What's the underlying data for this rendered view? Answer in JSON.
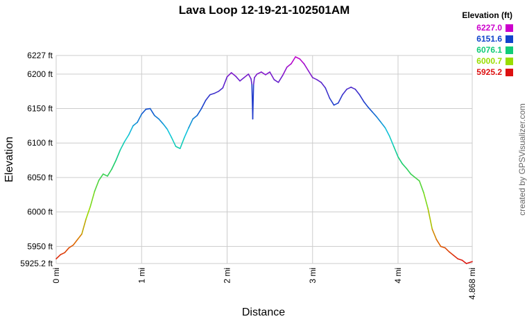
{
  "chart_data": {
    "type": "line",
    "title": "Lava Loop 12-19-21-102501AM",
    "xlabel": "Distance",
    "ylabel": "Elevation",
    "credit": "created by GPSVisualizer.com",
    "x_unit": "mi",
    "y_unit": "ft",
    "xlim": [
      0,
      4.868
    ],
    "ylim": [
      5925.2,
      6227.0
    ],
    "y_ticks": [
      {
        "value": 5925.2,
        "label": "5925.2 ft"
      },
      {
        "value": 5950,
        "label": "5950 ft"
      },
      {
        "value": 6000,
        "label": "6000 ft"
      },
      {
        "value": 6050,
        "label": "6050 ft"
      },
      {
        "value": 6100,
        "label": "6100 ft"
      },
      {
        "value": 6150,
        "label": "6150 ft"
      },
      {
        "value": 6200,
        "label": "6200 ft"
      },
      {
        "value": 6227,
        "label": "6227 ft"
      }
    ],
    "x_ticks": [
      {
        "value": 0,
        "label": "0 mi"
      },
      {
        "value": 1,
        "label": "1 mi"
      },
      {
        "value": 2,
        "label": "2 mi"
      },
      {
        "value": 3,
        "label": "3 mi"
      },
      {
        "value": 4,
        "label": "4 mi"
      },
      {
        "value": 4.868,
        "label": "4.868 mi"
      }
    ],
    "legend": {
      "title": "Elevation (ft)",
      "placement": "top-right",
      "entries": [
        {
          "label": "6227.0",
          "color": "#cc00cc"
        },
        {
          "label": "6151.6",
          "color": "#1144cc"
        },
        {
          "label": "6076.1",
          "color": "#11cc77"
        },
        {
          "label": "6000.7",
          "color": "#99dd00"
        },
        {
          "label": "5925.2",
          "color": "#dd1111"
        }
      ]
    },
    "grid": true,
    "color_by": "elevation",
    "series": [
      {
        "x": [
          0.0,
          0.05,
          0.1,
          0.15,
          0.2,
          0.25,
          0.3,
          0.35,
          0.4,
          0.45,
          0.5,
          0.55,
          0.6,
          0.65,
          0.7,
          0.75,
          0.8,
          0.85,
          0.9,
          0.95,
          1.0,
          1.05,
          1.1,
          1.15,
          1.2,
          1.25,
          1.3,
          1.35,
          1.4,
          1.45,
          1.5,
          1.55,
          1.6,
          1.65,
          1.7,
          1.75,
          1.8,
          1.85,
          1.9,
          1.95,
          2.0,
          2.05,
          2.1,
          2.15,
          2.2,
          2.25,
          2.28,
          2.29,
          2.3,
          2.31,
          2.32,
          2.35,
          2.4,
          2.45,
          2.5,
          2.55,
          2.6,
          2.65,
          2.7,
          2.75,
          2.8,
          2.85,
          2.9,
          2.95,
          3.0,
          3.05,
          3.1,
          3.15,
          3.2,
          3.25,
          3.3,
          3.35,
          3.4,
          3.45,
          3.5,
          3.55,
          3.6,
          3.65,
          3.7,
          3.75,
          3.8,
          3.85,
          3.9,
          3.95,
          4.0,
          4.05,
          4.1,
          4.15,
          4.2,
          4.25,
          4.3,
          4.35,
          4.4,
          4.45,
          4.5,
          4.55,
          4.6,
          4.65,
          4.7,
          4.75,
          4.8,
          4.868
        ],
        "y": [
          5932,
          5938,
          5941,
          5948,
          5952,
          5960,
          5968,
          5990,
          6008,
          6030,
          6046,
          6055,
          6052,
          6062,
          6075,
          6090,
          6102,
          6112,
          6125,
          6130,
          6142,
          6149,
          6150,
          6140,
          6135,
          6128,
          6120,
          6108,
          6095,
          6092,
          6108,
          6122,
          6135,
          6140,
          6150,
          6162,
          6170,
          6172,
          6175,
          6180,
          6196,
          6202,
          6197,
          6190,
          6195,
          6200,
          6193,
          6185,
          6135,
          6185,
          6195,
          6200,
          6203,
          6199,
          6203,
          6192,
          6188,
          6198,
          6210,
          6215,
          6225,
          6222,
          6215,
          6205,
          6195,
          6192,
          6188,
          6180,
          6165,
          6155,
          6158,
          6170,
          6178,
          6181,
          6178,
          6170,
          6160,
          6152,
          6145,
          6138,
          6130,
          6122,
          6110,
          6095,
          6080,
          6070,
          6063,
          6055,
          6050,
          6045,
          6028,
          6005,
          5975,
          5960,
          5950,
          5948,
          5942,
          5937,
          5932,
          5930,
          5925.2,
          5928
        ]
      }
    ]
  }
}
